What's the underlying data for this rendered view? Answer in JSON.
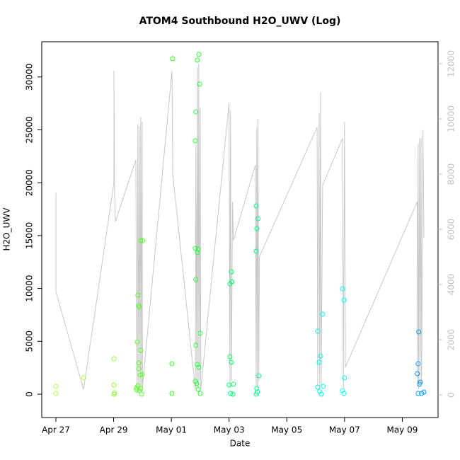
{
  "chart_data": {
    "type": "scatter",
    "title": "ATOM4 Southbound H2O_UWV (Log)",
    "x_label": "Date",
    "y_label": "H2O_UWV",
    "xlim": [
      -0.49,
      13.24
    ],
    "xticks": [
      {
        "value": 0,
        "label": "Apr 27"
      },
      {
        "value": 2,
        "label": "Apr 29"
      },
      {
        "value": 4,
        "label": "May 01"
      },
      {
        "value": 6,
        "label": "May 03"
      },
      {
        "value": 8,
        "label": "May 05"
      },
      {
        "value": 10,
        "label": "May 07"
      },
      {
        "value": 12,
        "label": "May 09"
      }
    ],
    "ylim": [
      -2210,
      33330
    ],
    "yticks": [
      0,
      5000,
      10000,
      15000,
      20000,
      25000,
      30000
    ],
    "y2lim": [
      -820,
      12795
    ],
    "y2ticks": [
      0,
      2000,
      4000,
      6000,
      8000,
      10000,
      12000
    ],
    "series": [
      {
        "color": "#aaff44",
        "x": [
          0,
          0,
          0.96
        ],
        "values": [
          740,
          70,
          1540
        ]
      },
      {
        "color": "#88ff33",
        "x": [
          2.01,
          2.01,
          2.03,
          2.01
        ],
        "values": [
          3350,
          870,
          130,
          0
        ]
      },
      {
        "color": "#55ff22",
        "x": [
          2.79,
          2.84,
          2.82,
          2.87,
          2.84,
          2.89,
          2.94,
          3.01,
          2.87,
          2.87,
          2.94,
          2.92,
          2.99,
          2.89,
          2.94,
          2.97,
          2.79
        ],
        "values": [
          600,
          800,
          4950,
          8370,
          9370,
          8230,
          14520,
          14520,
          2950,
          2410,
          4150,
          1810,
          1870,
          330,
          540,
          0,
          400
        ]
      },
      {
        "color": "#33ff22",
        "x": [
          4.04,
          4.02,
          4.02
        ],
        "values": [
          31730,
          2880,
          70
        ]
      },
      {
        "color": "#22ff33",
        "x": [
          4.83,
          4.85,
          4.9,
          4.95,
          4.98,
          4.83,
          4.9,
          4.93,
          4.85,
          4.85,
          5.0,
          4.9,
          4.95,
          4.83,
          4.88,
          4.93,
          5.0
        ],
        "values": [
          23960,
          26700,
          31590,
          32130,
          29320,
          13790,
          13390,
          13720,
          10840,
          4620,
          5760,
          2810,
          2540,
          1200,
          1000,
          470,
          70
        ]
      },
      {
        "color": "#00ff66",
        "x": [
          6.03,
          6.08,
          6.1,
          6.03,
          6.08,
          6.0,
          6.15,
          6.05,
          6.13
        ],
        "values": [
          10440,
          11580,
          10640,
          3550,
          3010,
          870,
          940,
          70,
          0
        ]
      },
      {
        "color": "#00ff88",
        "x": [
          6.94,
          7.0,
          6.96,
          6.94,
          7.03,
          6.96,
          6.98,
          6.94
        ],
        "values": [
          17800,
          16600,
          15660,
          13520,
          1740,
          540,
          200,
          0
        ]
      },
      {
        "color": "#00ffdd",
        "x": [
          9.07,
          9.12,
          9.17,
          9.24,
          9.07,
          9.14,
          9.26,
          9.19
        ],
        "values": [
          5960,
          3010,
          3610,
          7560,
          670,
          270,
          740,
          0
        ]
      },
      {
        "color": "#00ffee",
        "x": [
          9.93,
          9.98,
          10.0,
          9.93,
          9.98
        ],
        "values": [
          9970,
          8900,
          1540,
          330,
          70
        ]
      },
      {
        "color": "#0099ff",
        "x": [
          12.57,
          12.55,
          12.52,
          12.62,
          12.6,
          12.55,
          12.67,
          12.75
        ],
        "values": [
          5890,
          2880,
          1940,
          1140,
          940,
          70,
          70,
          200
        ]
      },
      {
        "type": "line",
        "axis": "y2",
        "color": "#c8c8c8",
        "x": [
          0,
          0,
          0.96,
          2.01,
          2.01,
          2.03,
          2.06,
          2.77,
          2.79,
          2.82,
          2.84,
          2.87,
          2.89,
          2.92,
          2.94,
          2.97,
          2.99,
          3.0,
          4.02,
          4.05,
          4.83,
          4.85,
          4.88,
          4.9,
          4.93,
          4.95,
          4.98,
          5.0,
          5.02,
          6.0,
          6.03,
          6.05,
          6.08,
          6.12,
          6.15,
          6.91,
          6.94,
          6.96,
          6.98,
          7.0,
          7.03,
          7.05,
          9.05,
          9.07,
          9.12,
          9.14,
          9.17,
          9.19,
          9.24,
          9.93,
          9.96,
          10.0,
          10.03,
          12.52,
          12.53,
          12.55,
          12.57,
          12.6,
          12.62,
          12.65,
          12.67,
          12.72,
          12.75
        ],
        "values": [
          7330,
          3740,
          200,
          7690,
          11740,
          7510,
          6280,
          8510,
          2640,
          80,
          9820,
          80,
          9740,
          80,
          10080,
          80,
          9900,
          300,
          11740,
          8000,
          200,
          9050,
          300,
          11870,
          200,
          12000,
          500,
          10400,
          200,
          10590,
          300,
          10300,
          500,
          7000,
          5590,
          8330,
          300,
          9700,
          200,
          10000,
          500,
          5000,
          9700,
          300,
          10200,
          400,
          10970,
          300,
          7600,
          9300,
          200,
          9900,
          1000,
          7000,
          300,
          9100,
          200,
          9300,
          300,
          9300,
          400,
          9600,
          5700
        ]
      }
    ]
  }
}
